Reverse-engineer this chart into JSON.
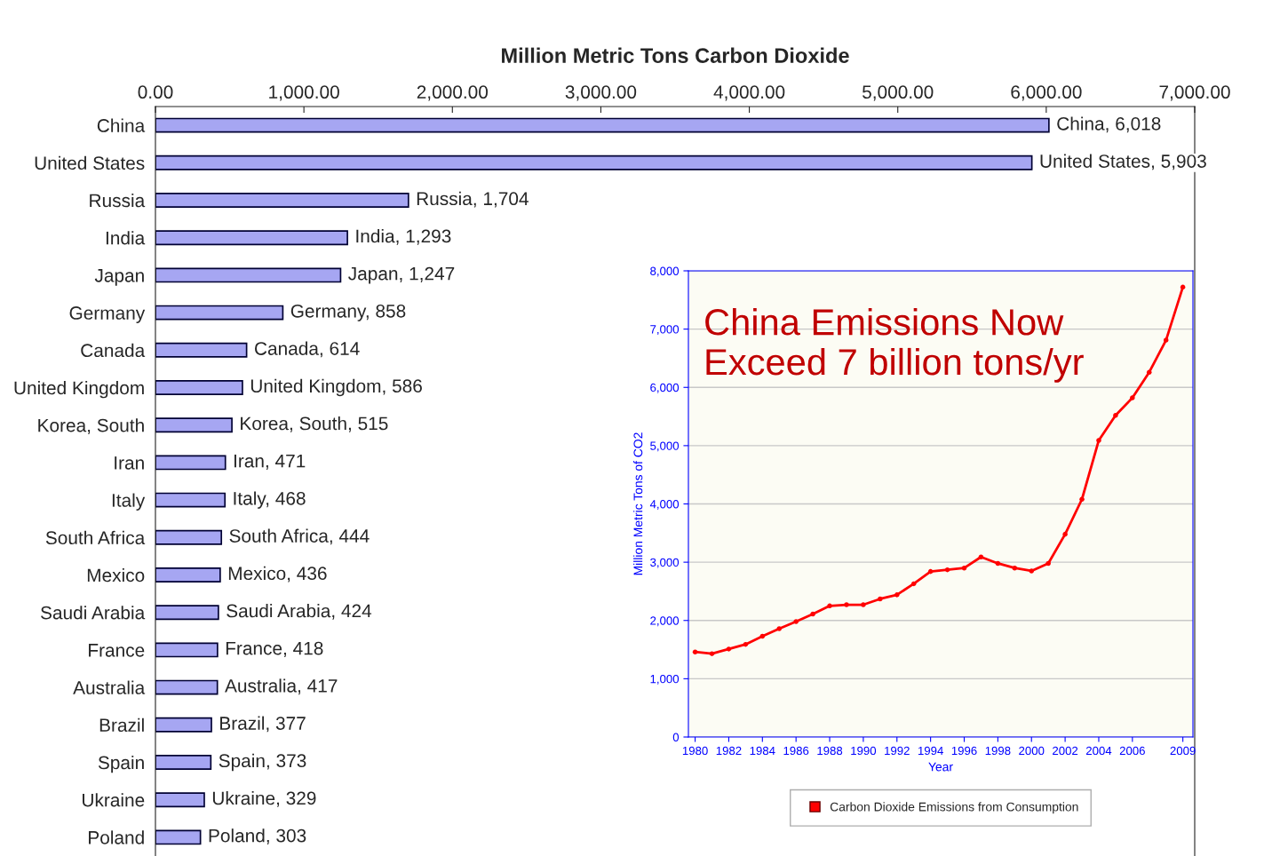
{
  "chart_data": [
    {
      "type": "bar",
      "orientation": "horizontal",
      "xlabel": "Million Metric Tons Carbon Dioxide",
      "categories": [
        "China",
        "United States",
        "Russia",
        "India",
        "Japan",
        "Germany",
        "Canada",
        "United Kingdom",
        "Korea, South",
        "Iran",
        "Italy",
        "South Africa",
        "Mexico",
        "Saudi Arabia",
        "France",
        "Australia",
        "Brazil",
        "Spain",
        "Ukraine",
        "Poland"
      ],
      "values": [
        6018,
        5903,
        1704,
        1293,
        1247,
        858,
        614,
        586,
        515,
        471,
        468,
        444,
        436,
        424,
        418,
        417,
        377,
        373,
        329,
        303
      ],
      "value_labels": [
        "China, 6,018",
        "United States, 5,903",
        "Russia, 1,704",
        "India, 1,293",
        "Japan, 1,247",
        "Germany, 858",
        "Canada, 614",
        "United Kingdom, 586",
        "Korea, South, 515",
        "Iran, 471",
        "Italy, 468",
        "South Africa, 444",
        "Mexico, 436",
        "Saudi Arabia, 424",
        "France, 418",
        "Australia, 417",
        "Brazil, 377",
        "Spain, 373",
        "Ukraine, 329",
        "Poland, 303"
      ],
      "color": "#9999ff",
      "xlim": [
        0,
        7000
      ],
      "xticks": [
        {
          "value": 0,
          "label": "0.00"
        },
        {
          "value": 1000,
          "label": "1,000.00"
        },
        {
          "value": 2000,
          "label": "2,000.00"
        },
        {
          "value": 3000,
          "label": "3,000.00"
        },
        {
          "value": 4000,
          "label": "4,000.00"
        },
        {
          "value": 5000,
          "label": "5,000.00"
        },
        {
          "value": 6000,
          "label": "6,000.00"
        },
        {
          "value": 7000,
          "label": "7,000.00"
        }
      ],
      "grid": false
    },
    {
      "type": "line",
      "xlabel": "Year",
      "ylabel": "Million Metric Tons of CO2",
      "x": [
        1980,
        1981,
        1982,
        1983,
        1984,
        1985,
        1986,
        1987,
        1988,
        1989,
        1990,
        1991,
        1992,
        1993,
        1994,
        1995,
        1996,
        1997,
        1998,
        1999,
        2000,
        2001,
        2002,
        2003,
        2004,
        2005,
        2006,
        2007,
        2008,
        2009
      ],
      "series": [
        {
          "name": "Carbon Dioxide Emissions from Consumption",
          "color": "#ff0000",
          "values": [
            1460,
            1430,
            1510,
            1590,
            1730,
            1860,
            1980,
            2110,
            2250,
            2270,
            2270,
            2370,
            2440,
            2630,
            2840,
            2870,
            2900,
            3090,
            2980,
            2900,
            2850,
            2980,
            3480,
            4080,
            5090,
            5520,
            5820,
            6260,
            6810,
            7720
          ]
        }
      ],
      "xlim": [
        1979.6,
        2009.6
      ],
      "xticks": [
        1980,
        1982,
        1984,
        1986,
        1988,
        1990,
        1992,
        1994,
        1996,
        1998,
        2000,
        2002,
        2004,
        2006,
        2009
      ],
      "ylim": [
        0,
        8000
      ],
      "yticks": [
        0,
        {
          "value": 1000,
          "label": "1,000"
        },
        {
          "value": 2000,
          "label": "2,000"
        },
        {
          "value": 3000,
          "label": "3,000"
        },
        {
          "value": 4000,
          "label": "4,000"
        },
        {
          "value": 5000,
          "label": "5,000"
        },
        {
          "value": 6000,
          "label": "6,000"
        },
        {
          "value": 7000,
          "label": "7,000"
        },
        {
          "value": 8000,
          "label": "8,000"
        }
      ],
      "grid": "y",
      "marker": "circle",
      "line_style": "solid",
      "legend": "bottom",
      "annotations": [
        "China Emissions Now\nExceed 7 billion tons/yr"
      ]
    }
  ]
}
